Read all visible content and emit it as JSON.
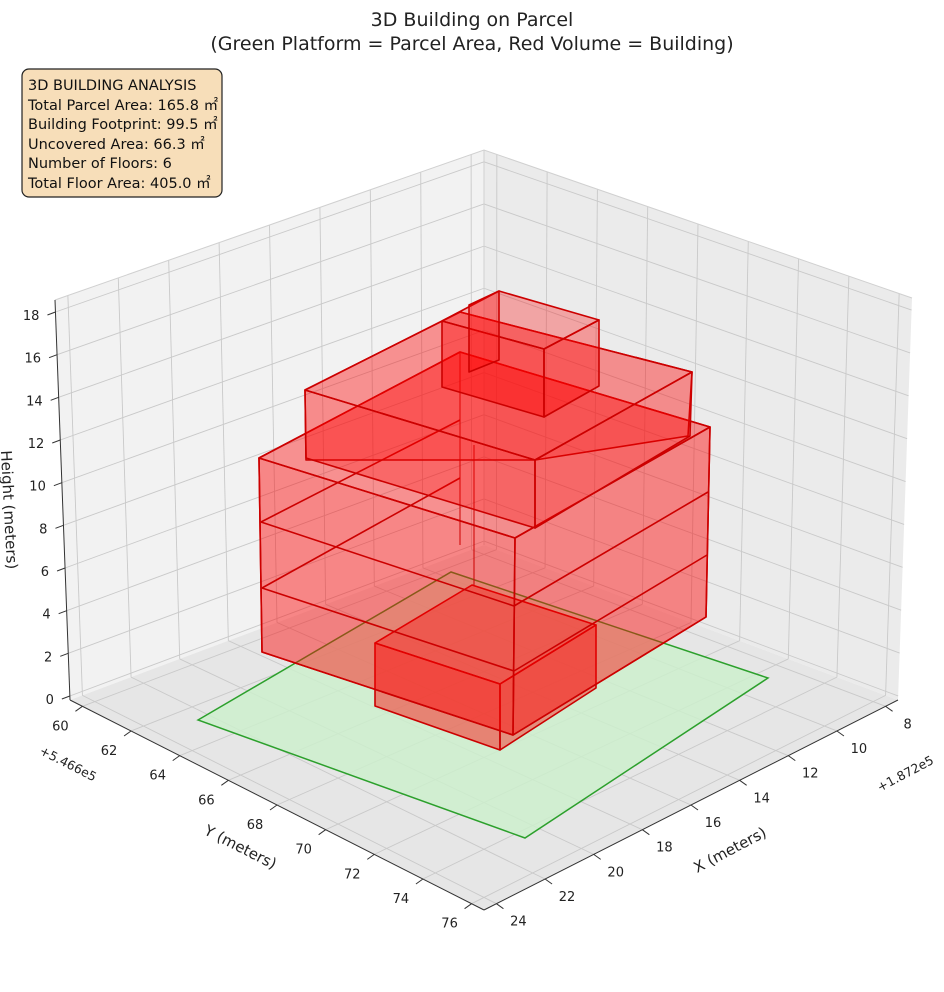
{
  "chart_data": {
    "type": "3d-box",
    "title": "3D Building on Parcel",
    "subtitle": "(Green Platform = Parcel Area, Red Volume = Building)",
    "xlabel": "X (meters)",
    "ylabel": "Y (meters)",
    "zlabel": "Height (meters)",
    "x_offset": "+1.872e5",
    "y_offset": "+5.466e5",
    "x_ticks": [
      8,
      10,
      12,
      14,
      16,
      18,
      20,
      22,
      24
    ],
    "y_ticks": [
      60,
      62,
      64,
      66,
      68,
      70,
      72,
      74,
      76
    ],
    "z_ticks": [
      0,
      2,
      4,
      6,
      8,
      10,
      12,
      14,
      16,
      18
    ],
    "info_box": {
      "heading": "3D BUILDING ANALYSIS",
      "lines": [
        "Total Parcel Area: 165.8 ㎡",
        "Building Footprint: 99.5 ㎡",
        "Uncovered Area: 66.3 ㎡",
        "Number of Floors: 6",
        "Total Floor Area: 405.0 ㎡"
      ]
    },
    "colors": {
      "parcel_fill": "#cdeecd",
      "parcel_edge": "#2ca02c",
      "building_fill": "#ff0000",
      "building_edge": "#cc0000",
      "info_fill": "#f7deb9"
    }
  }
}
